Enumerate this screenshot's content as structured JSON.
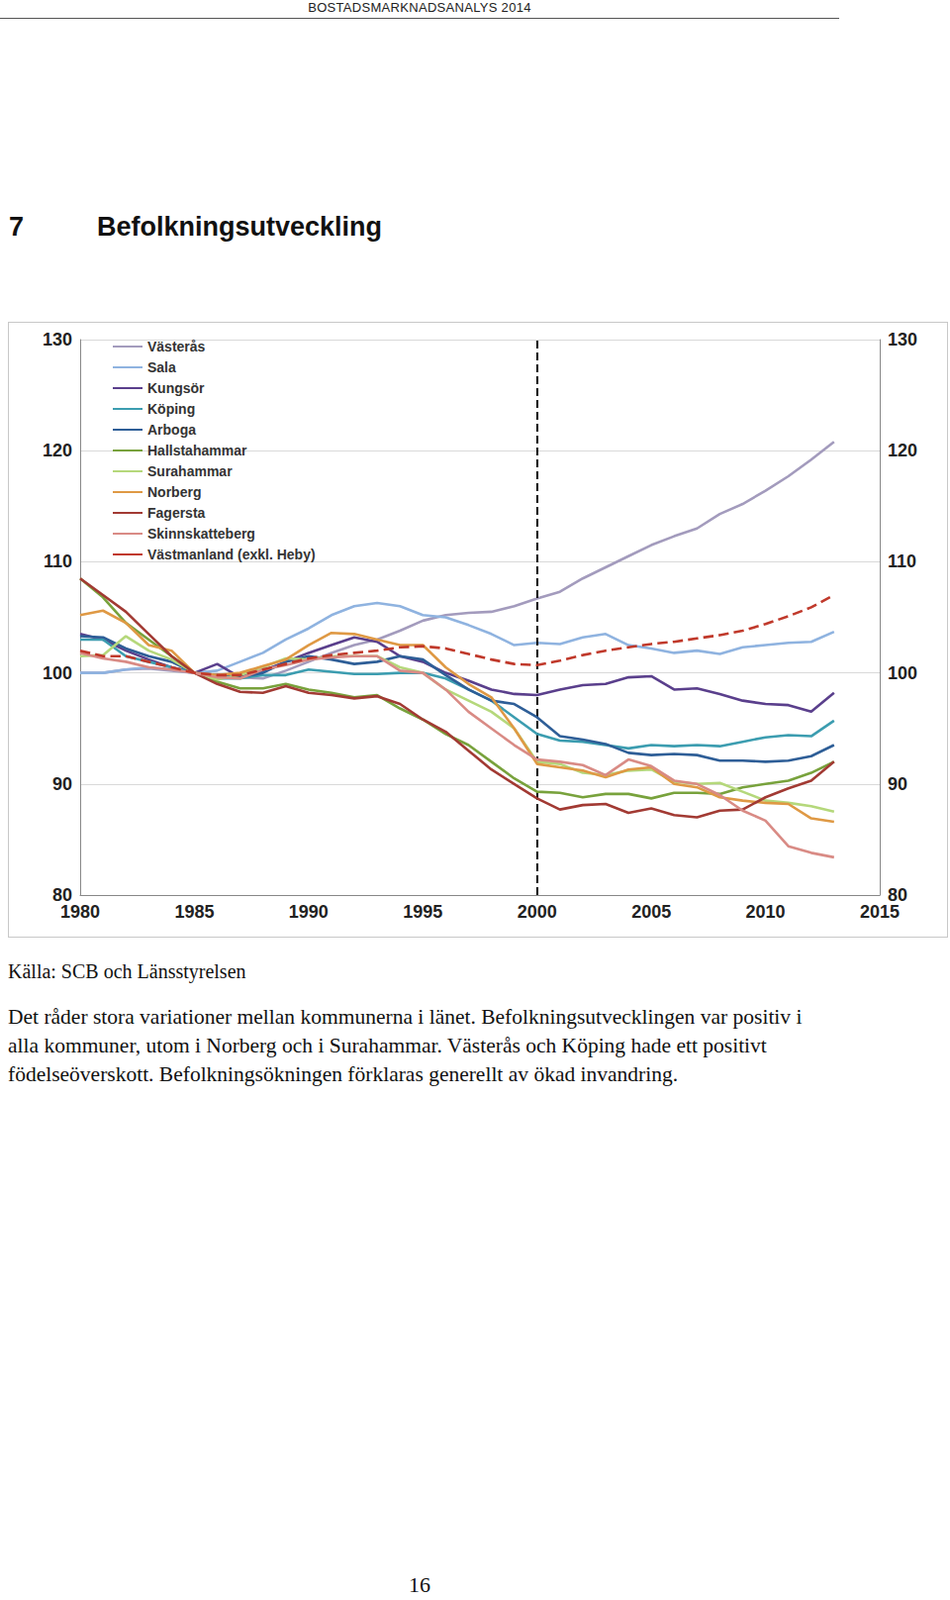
{
  "header": {
    "title": "BOSTADSMARKNADSANALYS 2014"
  },
  "section": {
    "number": "7",
    "title": "Befolkningsutveckling"
  },
  "chart_data": {
    "type": "line",
    "x": [
      1980,
      1981,
      1982,
      1983,
      1984,
      1985,
      1986,
      1987,
      1988,
      1989,
      1990,
      1991,
      1992,
      1993,
      1994,
      1995,
      1996,
      1997,
      1998,
      1999,
      2000,
      2001,
      2002,
      2003,
      2004,
      2005,
      2006,
      2007,
      2008,
      2009,
      2010,
      2011,
      2012,
      2013
    ],
    "xlim": [
      1980,
      2015
    ],
    "xticks": [
      1980,
      1985,
      1990,
      1995,
      2000,
      2005,
      2010,
      2015
    ],
    "ylim": [
      80,
      130
    ],
    "yticks": [
      80,
      90,
      100,
      110,
      120,
      130
    ],
    "y2lim": [
      80,
      130
    ],
    "y2ticks": [
      80,
      90,
      100,
      110,
      120,
      130
    ],
    "grid": true,
    "legend": "upper left",
    "vertical_line_x": 2000,
    "series": [
      {
        "name": "Västerås",
        "color": "#a39bbd",
        "values": [
          100,
          100,
          100.3,
          100.4,
          100.2,
          100,
          99.8,
          99.6,
          99.5,
          100.2,
          101,
          101.8,
          102.5,
          103,
          103.8,
          104.7,
          105.2,
          105.4,
          105.5,
          106,
          106.7,
          107.3,
          108.5,
          109.5,
          110.5,
          111.5,
          112.3,
          113,
          114.3,
          115.2,
          116.4,
          117.7,
          119.2,
          120.8
        ]
      },
      {
        "name": "Sala",
        "color": "#8fb3e0",
        "values": [
          100,
          100,
          100.3,
          100.5,
          100.3,
          100,
          100.2,
          101,
          101.8,
          103,
          104,
          105.2,
          106,
          106.3,
          106,
          105.2,
          105,
          104.3,
          103.5,
          102.5,
          102.7,
          102.6,
          103.2,
          103.5,
          102.5,
          102.2,
          101.8,
          102,
          101.7,
          102.3,
          102.5,
          102.7,
          102.8,
          103.7
        ]
      },
      {
        "name": "Kungsör",
        "color": "#5a3f8c",
        "values": [
          103.5,
          103,
          102,
          101.2,
          100.5,
          100,
          100.8,
          99.6,
          100.2,
          101,
          101.8,
          102.5,
          103.2,
          102.8,
          101.5,
          101,
          100,
          99.3,
          98.5,
          98.1,
          98,
          98.5,
          98.9,
          99,
          99.6,
          99.7,
          98.5,
          98.6,
          98.1,
          97.5,
          97.2,
          97.1,
          96.5,
          98.2
        ]
      },
      {
        "name": "Köping",
        "color": "#3c9db0",
        "values": [
          103,
          103,
          101.5,
          101,
          100.5,
          100,
          99.5,
          99.5,
          99.8,
          99.8,
          100.3,
          100.1,
          99.9,
          99.9,
          100,
          100,
          99.5,
          98.5,
          97.5,
          96,
          94.5,
          93.9,
          93.8,
          93.5,
          93.2,
          93.5,
          93.4,
          93.5,
          93.4,
          93.8,
          94.2,
          94.4,
          94.3,
          95.7
        ]
      },
      {
        "name": "Arboga",
        "color": "#2e5e97",
        "values": [
          103.3,
          103.2,
          102.2,
          101.5,
          101,
          100,
          99.8,
          99.6,
          100,
          101,
          101.5,
          101.2,
          100.8,
          101,
          101.5,
          101.2,
          99.8,
          98.5,
          97.5,
          97.2,
          96,
          94.3,
          94,
          93.6,
          92.8,
          92.6,
          92.7,
          92.6,
          92.1,
          92.1,
          92,
          92.1,
          92.5,
          93.5
        ]
      },
      {
        "name": "Hallstahammar",
        "color": "#78a23c",
        "values": [
          108.5,
          106.8,
          104.5,
          103,
          101.5,
          100,
          99.2,
          98.6,
          98.6,
          99,
          98.5,
          98.2,
          97.8,
          98,
          96.8,
          95.8,
          94.5,
          93.5,
          92,
          90.5,
          89.3,
          89.2,
          88.8,
          89.1,
          89.1,
          88.7,
          89.2,
          89.2,
          89.1,
          89.7,
          90,
          90.3,
          91,
          92
        ]
      },
      {
        "name": "Surahammar",
        "color": "#b5d87b",
        "values": [
          101.5,
          101.6,
          103.3,
          102,
          101.2,
          100,
          99.4,
          99.8,
          100.5,
          101.3,
          101.2,
          101.5,
          101.5,
          101.5,
          100.5,
          100,
          98.5,
          97.5,
          96.5,
          95,
          92,
          91.8,
          91,
          90.8,
          91.2,
          91.3,
          90.2,
          90,
          90.1,
          89.3,
          88.5,
          88.3,
          88,
          87.5
        ]
      },
      {
        "name": "Norberg",
        "color": "#df9944",
        "values": [
          105.2,
          105.6,
          104.5,
          102.5,
          102,
          100,
          99.8,
          100,
          100.6,
          101.2,
          102.5,
          103.6,
          103.5,
          103,
          102.5,
          102.5,
          100.5,
          99,
          97.8,
          95,
          91.8,
          91.5,
          91.2,
          90.6,
          91.3,
          91.5,
          90,
          89.7,
          88.8,
          88.5,
          88.3,
          88.2,
          86.9,
          86.6
        ]
      },
      {
        "name": "Fagersta",
        "color": "#a23a33",
        "values": [
          108.5,
          107,
          105.5,
          103.5,
          101.5,
          100,
          99,
          98.3,
          98.2,
          98.8,
          98.2,
          98,
          97.7,
          97.9,
          97.2,
          95.8,
          94.7,
          93,
          91.3,
          90,
          88.7,
          87.7,
          88.1,
          88.2,
          87.4,
          87.8,
          87.2,
          87,
          87.6,
          87.7,
          88.8,
          89.6,
          90.3,
          92
        ]
      },
      {
        "name": "Skinnskatteberg",
        "color": "#d98b85",
        "values": [
          101.8,
          101.3,
          101,
          100.5,
          100.3,
          100,
          99.6,
          99.5,
          100.3,
          100.7,
          101.2,
          101.4,
          101.5,
          101.5,
          100.2,
          100,
          98.5,
          96.5,
          95,
          93.5,
          92.2,
          92,
          91.7,
          90.8,
          92.2,
          91.6,
          90.3,
          90,
          89,
          87.6,
          86.7,
          84.4,
          83.8,
          83.4
        ]
      },
      {
        "name": "Västmanland (exkl. Heby)",
        "color": "#c0392b",
        "line_style": "dashed",
        "values": [
          102,
          101.5,
          101.5,
          101,
          100.5,
          100,
          99.8,
          99.8,
          100.3,
          100.8,
          101.3,
          101.6,
          101.8,
          102,
          102.3,
          102.4,
          102.2,
          101.7,
          101.2,
          100.8,
          100.7,
          101.1,
          101.6,
          102,
          102.3,
          102.6,
          102.8,
          103.1,
          103.4,
          103.8,
          104.4,
          105.1,
          105.9,
          107
        ]
      }
    ]
  },
  "source": "Källa: SCB och Länsstyrelsen",
  "body": "Det råder stora variationer mellan kommunerna i länet. Befolkningsutvecklingen var positiv i alla kommuner, utom i Norberg och i Surahammar. Västerås och Köping hade ett positivt födelseöverskott. Befolkningsökningen förklaras generellt av ökad invandring.",
  "page_number": "16"
}
